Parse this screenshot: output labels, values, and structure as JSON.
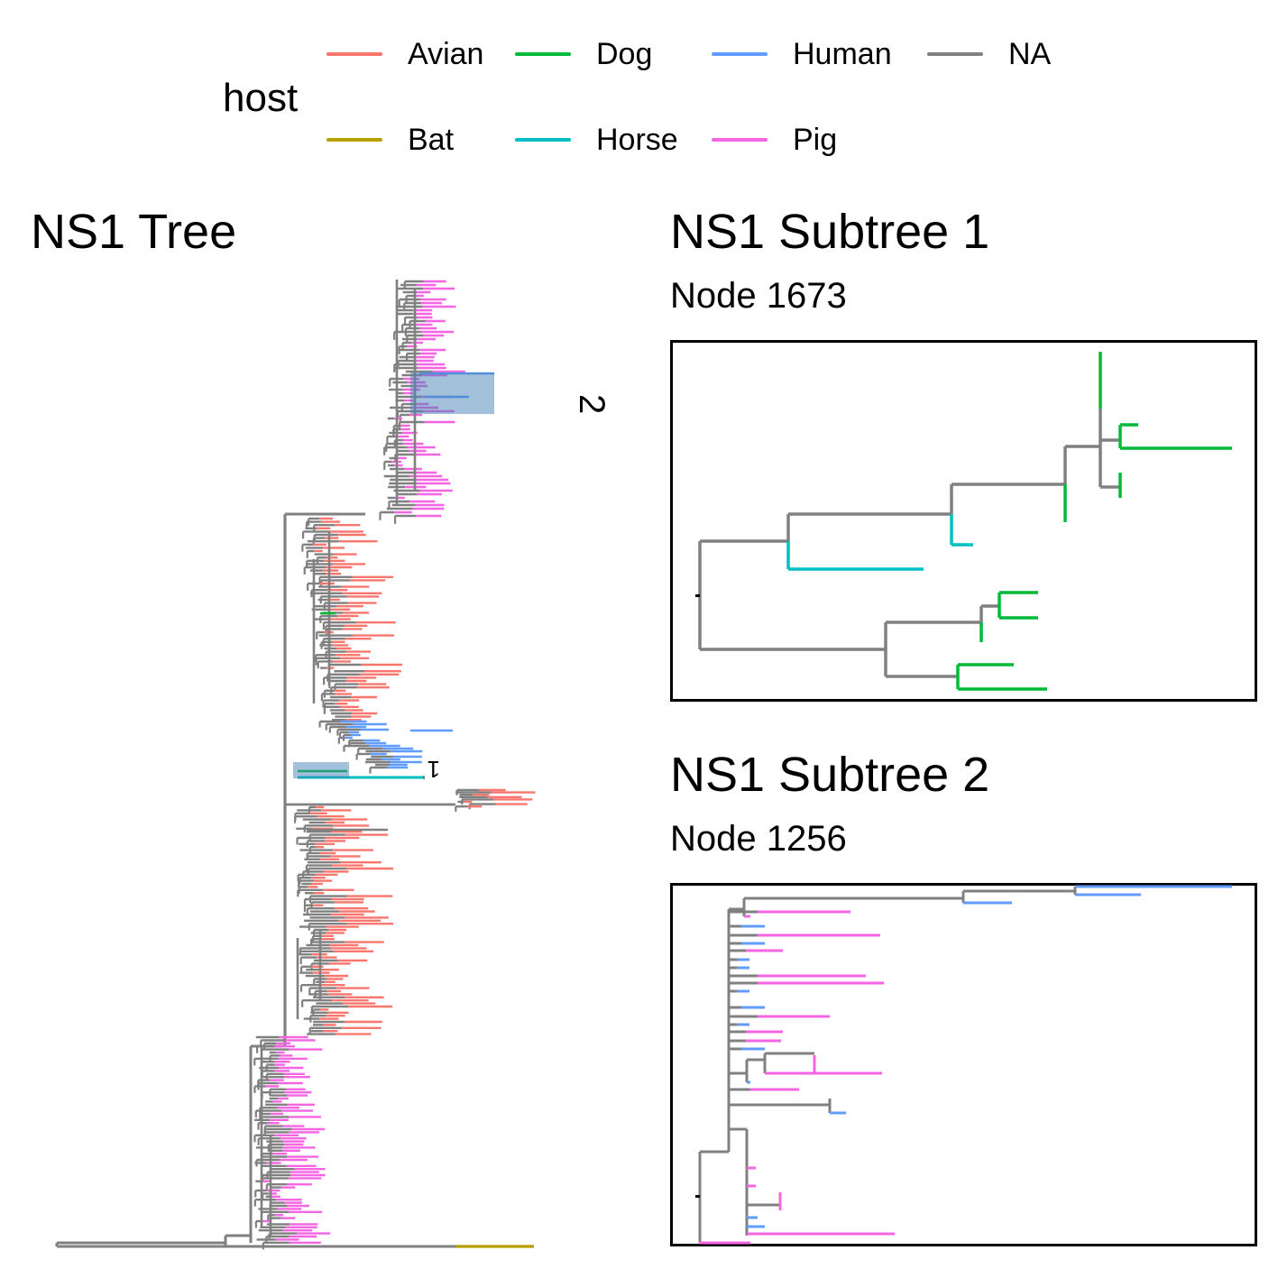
{
  "legend": {
    "title": "host",
    "items": [
      {
        "label": "Avian",
        "color": "#F8766D"
      },
      {
        "label": "Bat",
        "color": "#B79F00"
      },
      {
        "label": "Dog",
        "color": "#00BA38"
      },
      {
        "label": "Horse",
        "color": "#00BFC4"
      },
      {
        "label": "Human",
        "color": "#619CFF"
      },
      {
        "label": "Pig",
        "color": "#F564E3"
      },
      {
        "label": "NA",
        "color": "#808080"
      }
    ]
  },
  "main_tree": {
    "title": "NS1 Tree",
    "highlight_labels": [
      "1",
      "2"
    ]
  },
  "subtree1": {
    "title": "NS1 Subtree 1",
    "subtitle": "Node 1673"
  },
  "subtree2": {
    "title": "NS1 Subtree 2",
    "subtitle": "Node 1256"
  }
}
